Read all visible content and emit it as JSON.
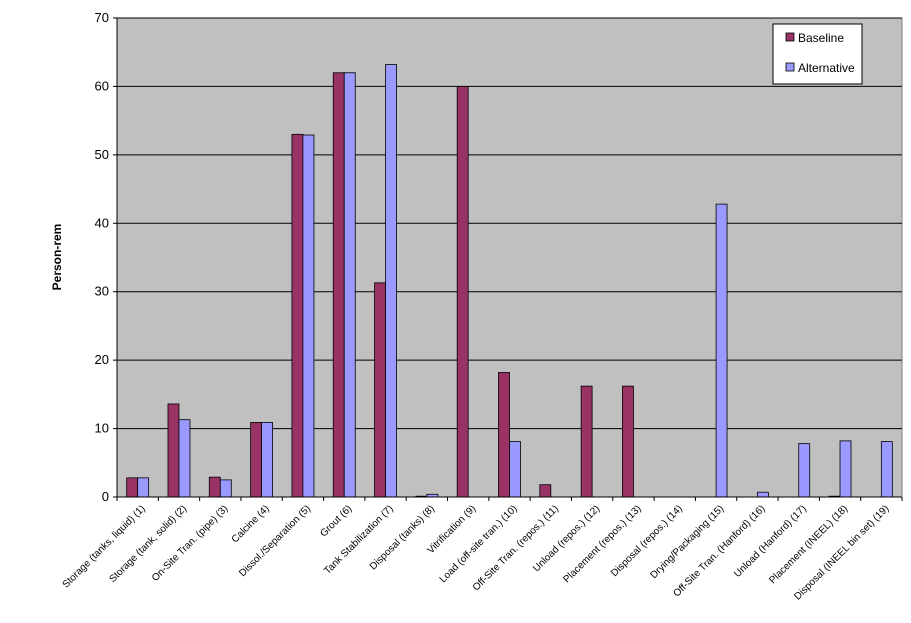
{
  "chart_data": {
    "type": "bar",
    "ylabel": "Person-rem",
    "ylim": [
      0,
      70
    ],
    "yticks": [
      0,
      10,
      20,
      30,
      40,
      50,
      60,
      70
    ],
    "grid": true,
    "legend_position": "top-right",
    "categories": [
      "Storage (tanks, liquid) (1)",
      "Storage (tank, solid) (2)",
      "On-Site Tran. (pipe) (3)",
      "Calcine (4)",
      "Dissol./Separation (5)",
      "Grout (6)",
      "Tank Stabilization (7)",
      "Disposal (tanks) (8)",
      "Vitrification (9)",
      "Load (off-site tran.) (10)",
      "Off-Site Tran. (repos.) (11)",
      "Unload (repos.) (12)",
      "Placement (repos.) (13)",
      "Disposal (repos.) (14)",
      "Drying/Packaging (15)",
      "Off-Site Tran. (Hanford) (16)",
      "Unload (Hanford) (17)",
      "Placement (INEEL) (18)",
      "Disposal (INEEL bin set) (19)"
    ],
    "series": [
      {
        "name": "Baseline",
        "color": "#993366",
        "values": [
          2.8,
          13.6,
          2.9,
          10.9,
          53.0,
          62.0,
          31.3,
          0.1,
          60.0,
          18.2,
          1.8,
          16.2,
          16.2,
          0,
          0,
          0,
          0,
          0.1,
          0
        ]
      },
      {
        "name": "Alternative",
        "color": "#9999ff",
        "values": [
          2.8,
          11.3,
          2.5,
          10.9,
          52.9,
          62.0,
          63.2,
          0.4,
          0,
          8.1,
          0,
          0,
          0,
          0,
          42.8,
          0.7,
          7.8,
          8.2,
          8.1
        ]
      }
    ]
  }
}
